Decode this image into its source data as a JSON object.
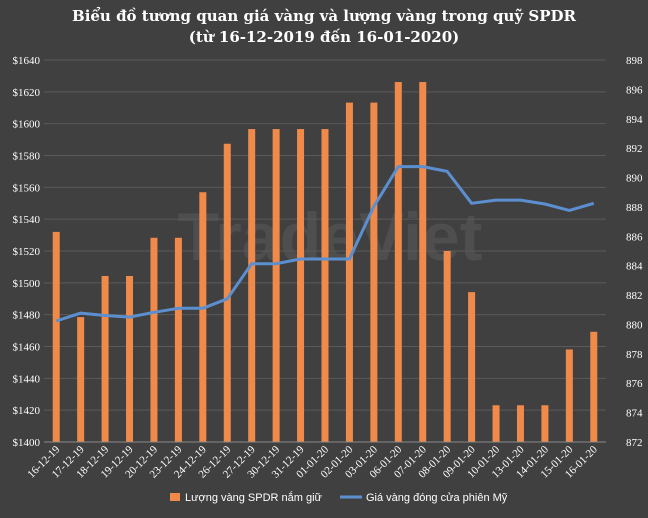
{
  "chart_data": {
    "type": "bar+line",
    "title": "Biểu đồ tương quan giá vàng và lượng vàng trong quỹ SPDR",
    "subtitle": "(từ 16-12-2019 đến 16-01-2020)",
    "watermark": "TradeViet",
    "categories": [
      "16-12-19",
      "17-12-19",
      "18-12-19",
      "19-12-19",
      "20-12-19",
      "23-12-19",
      "24-12-19",
      "26-12-19",
      "27-12-19",
      "30-12-19",
      "31-12-19",
      "01-01-20",
      "02-01-20",
      "03-01-20",
      "06-01-20",
      "07-01-20",
      "08-01-20",
      "09-01-20",
      "10-01-20",
      "13-01-20",
      "14-01-20",
      "15-01-20",
      "16-01-20"
    ],
    "y_left": {
      "ylim": [
        1400,
        1640
      ],
      "ticks": [
        "$1400",
        "$1420",
        "$1440",
        "$1460",
        "$1480",
        "$1500",
        "$1520",
        "$1540",
        "$1560",
        "$1580",
        "$1600",
        "$1620",
        "$1640"
      ]
    },
    "y_right": {
      "ylim": [
        872,
        898
      ],
      "ticks": [
        "872",
        "874",
        "876",
        "878",
        "880",
        "882",
        "884",
        "886",
        "888",
        "890",
        "892",
        "894",
        "896",
        "898"
      ]
    },
    "series": [
      {
        "name": "Lượng vàng SPDR nắm giữ",
        "type": "bar",
        "axis": "right",
        "color": "#f08a4b",
        "values": [
          886.3,
          880.5,
          883.3,
          883.3,
          885.9,
          885.9,
          889.0,
          892.3,
          893.3,
          893.3,
          893.3,
          893.3,
          895.1,
          895.1,
          896.5,
          896.5,
          885.0,
          882.2,
          874.5,
          874.5,
          874.5,
          878.3,
          879.5
        ]
      },
      {
        "name": "Giá vàng đóng cửa phiên Mỹ",
        "type": "line",
        "axis": "left",
        "color": "#5b8fd0",
        "values": [
          1476,
          1481,
          1479.5,
          1478.5,
          1481.5,
          1484,
          1484,
          1490,
          1512,
          1512,
          1515,
          1515,
          1515,
          1548,
          1573,
          1573,
          1570,
          1550,
          1552,
          1552,
          1549.5,
          1545.5,
          1550
        ]
      }
    ],
    "grid": true,
    "legend": "bottom"
  }
}
